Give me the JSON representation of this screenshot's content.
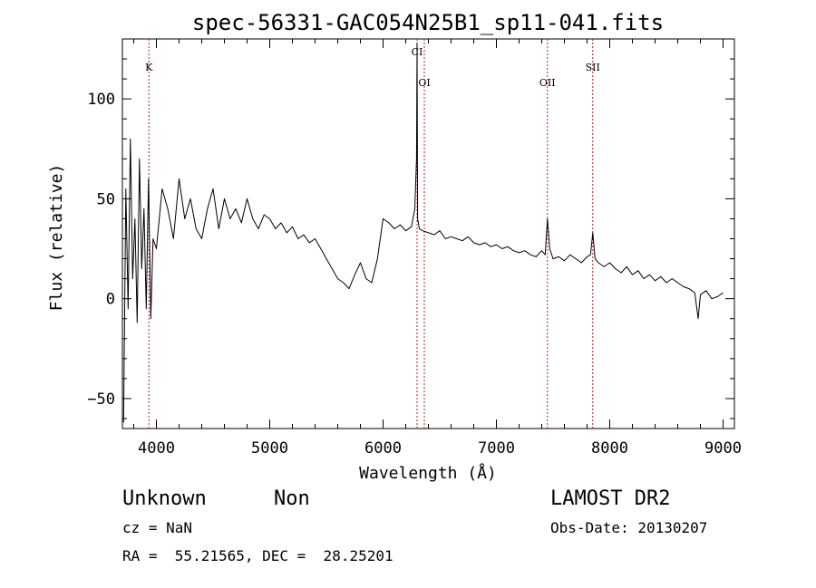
{
  "chart_data": {
    "type": "line",
    "title": "spec-56331-GAC054N25B1_sp11-041.fits",
    "xlabel": "Wavelength (Å)",
    "ylabel": "Flux (relative)",
    "xlim": [
      3700,
      9100
    ],
    "ylim": [
      -65,
      130
    ],
    "x_ticks": [
      4000,
      5000,
      6000,
      7000,
      8000,
      9000
    ],
    "x_tick_labels": [
      "4000",
      "5000",
      "6000",
      "7000",
      "8000",
      "9000"
    ],
    "y_ticks": [
      -50,
      0,
      50,
      100
    ],
    "y_tick_labels": [
      "−50",
      "0",
      "50",
      "100"
    ],
    "grid": false,
    "line_color": "#000000",
    "marker_color": "#b22222",
    "lines": [
      {
        "label": "K",
        "wavelength": 3934
      },
      {
        "label": "CI",
        "wavelength": 6300
      },
      {
        "label": "OI",
        "wavelength": 6364
      },
      {
        "label": "OII",
        "wavelength": 7450
      },
      {
        "label": "SII",
        "wavelength": 7850
      }
    ],
    "series": [
      {
        "name": "",
        "x": [
          3710,
          3730,
          3750,
          3770,
          3790,
          3810,
          3830,
          3850,
          3870,
          3890,
          3910,
          3930,
          3950,
          3970,
          4000,
          4050,
          4100,
          4150,
          4200,
          4250,
          4300,
          4350,
          4400,
          4450,
          4500,
          4550,
          4600,
          4650,
          4700,
          4750,
          4800,
          4850,
          4900,
          4950,
          5000,
          5050,
          5100,
          5150,
          5200,
          5250,
          5300,
          5350,
          5400,
          5450,
          5500,
          5550,
          5600,
          5650,
          5700,
          5750,
          5800,
          5850,
          5900,
          5950,
          6000,
          6050,
          6100,
          6150,
          6200,
          6250,
          6280,
          6295,
          6300,
          6305,
          6320,
          6350,
          6400,
          6450,
          6500,
          6550,
          6600,
          6650,
          6700,
          6750,
          6800,
          6850,
          6900,
          6950,
          7000,
          7050,
          7100,
          7150,
          7200,
          7250,
          7300,
          7350,
          7400,
          7430,
          7450,
          7470,
          7500,
          7550,
          7600,
          7650,
          7700,
          7750,
          7800,
          7830,
          7850,
          7870,
          7900,
          7950,
          8000,
          8050,
          8100,
          8150,
          8200,
          8250,
          8300,
          8350,
          8400,
          8450,
          8500,
          8550,
          8600,
          8650,
          8700,
          8750,
          8780,
          8800,
          8850,
          8900,
          8950,
          9000
        ],
        "y": [
          -62,
          55,
          -5,
          80,
          10,
          40,
          -12,
          70,
          15,
          45,
          -5,
          60,
          -10,
          30,
          25,
          55,
          45,
          30,
          60,
          40,
          50,
          35,
          30,
          45,
          55,
          35,
          50,
          40,
          45,
          38,
          50,
          40,
          35,
          42,
          40,
          35,
          38,
          33,
          36,
          30,
          32,
          28,
          30,
          25,
          20,
          15,
          10,
          8,
          5,
          12,
          18,
          10,
          8,
          20,
          40,
          38,
          35,
          37,
          34,
          36,
          45,
          70,
          128,
          40,
          35,
          34,
          33,
          32,
          34,
          30,
          31,
          30,
          29,
          31,
          28,
          27,
          28,
          26,
          27,
          25,
          26,
          24,
          23,
          24,
          22,
          21,
          24,
          22,
          40,
          25,
          20,
          21,
          19,
          22,
          20,
          18,
          21,
          22,
          33,
          20,
          18,
          16,
          18,
          15,
          13,
          16,
          12,
          14,
          10,
          12,
          9,
          11,
          8,
          10,
          8,
          6,
          5,
          3,
          -10,
          2,
          4,
          0,
          1,
          3
        ]
      }
    ]
  },
  "footer": {
    "object_class": "Unknown",
    "subclass": "Non",
    "survey": "LAMOST DR2",
    "redshift": "cz = NaN",
    "obs_date": "Obs-Date: 20130207",
    "coords": "RA =  55.21565, DEC =  28.25201"
  }
}
